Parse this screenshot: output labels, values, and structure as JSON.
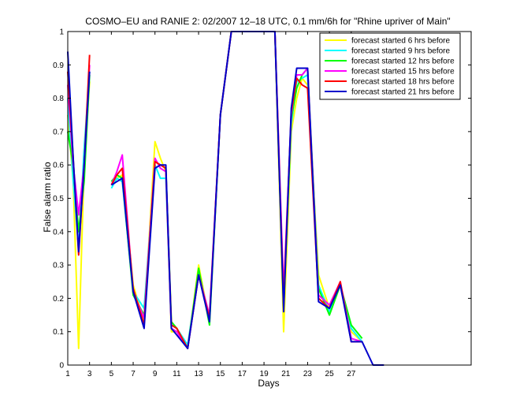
{
  "chart_data": {
    "type": "line",
    "title": "COSMO–EU and RANIE 2: 02/2007 12–18 UTC, 0.1 mm/6h for \"Rhine upriver of Main\"",
    "xlabel": "Days",
    "ylabel": "False alarm ratio",
    "xlim": [
      1,
      38
    ],
    "ylim": [
      0,
      1
    ],
    "x_ticks": [
      1,
      3,
      5,
      7,
      9,
      11,
      13,
      15,
      17,
      19,
      21,
      23,
      25,
      27
    ],
    "y_ticks": [
      0,
      0.1,
      0.2,
      0.3,
      0.4,
      0.5,
      0.6,
      0.7,
      0.8,
      0.9,
      1
    ],
    "y_tick_labels": [
      "0",
      "0.1",
      "0.2",
      "0.3",
      "0.4",
      "0.5",
      "0.6",
      "0.7",
      "0.8",
      "0.9",
      "1"
    ],
    "grid": false,
    "legend_position": "top-right",
    "series": [
      {
        "name": "forecast started 6 hrs before",
        "color": "#ffff00",
        "points": [
          [
            1,
            0.75
          ],
          [
            1.5,
            0.55
          ],
          [
            2,
            0.05
          ],
          [
            2.5,
            0.6
          ],
          [
            3,
            0.85
          ],
          null,
          [
            5,
            0.55
          ],
          [
            5.5,
            0.56
          ],
          [
            6,
            0.57
          ],
          [
            7,
            0.24
          ],
          [
            8,
            0.13
          ],
          [
            9,
            0.67
          ],
          [
            9.5,
            0.62
          ],
          [
            10,
            0.58
          ],
          [
            10.5,
            0.1
          ],
          [
            11,
            0.1
          ],
          [
            12,
            0.05
          ],
          [
            13,
            0.3
          ],
          [
            14,
            0.13
          ],
          [
            15,
            0.75
          ],
          [
            16,
            1
          ],
          [
            17,
            1
          ],
          [
            19,
            1
          ],
          [
            20,
            1
          ],
          [
            20.8,
            0.1
          ],
          [
            21.5,
            0.7
          ],
          [
            22,
            0.8
          ],
          [
            22.5,
            0.86
          ],
          [
            23,
            0.84
          ],
          [
            24,
            0.27
          ],
          [
            25,
            0.17
          ],
          [
            26,
            0.24
          ],
          [
            27,
            0.1
          ],
          [
            28,
            0.07
          ]
        ]
      },
      {
        "name": "forecast started 9 hrs before",
        "color": "#00ffff",
        "points": [
          [
            1,
            0.8
          ],
          [
            1.5,
            0.55
          ],
          [
            2,
            0.35
          ],
          [
            2.5,
            0.65
          ],
          [
            3,
            0.88
          ],
          null,
          [
            5,
            0.53
          ],
          [
            5.5,
            0.56
          ],
          [
            6,
            0.55
          ],
          [
            7,
            0.22
          ],
          [
            8,
            0.17
          ],
          [
            9,
            0.6
          ],
          [
            9.5,
            0.56
          ],
          [
            10,
            0.56
          ],
          [
            10.5,
            0.12
          ],
          [
            11,
            0.11
          ],
          [
            12,
            0.06
          ],
          [
            13,
            0.28
          ],
          [
            14,
            0.14
          ],
          [
            15,
            0.75
          ],
          [
            16,
            1
          ],
          [
            17,
            1
          ],
          [
            19,
            1
          ],
          [
            20,
            1
          ],
          [
            20.8,
            0.2
          ],
          [
            21.5,
            0.72
          ],
          [
            22,
            0.85
          ],
          [
            22.5,
            0.86
          ],
          [
            23,
            0.87
          ],
          [
            24,
            0.24
          ],
          [
            25,
            0.16
          ],
          [
            26,
            0.24
          ],
          [
            27,
            0.11
          ],
          [
            28,
            0.07
          ]
        ]
      },
      {
        "name": "forecast started 12 hrs before",
        "color": "#00ff00",
        "points": [
          [
            1,
            0.7
          ],
          [
            1.5,
            0.6
          ],
          [
            2,
            0.4
          ],
          [
            2.5,
            0.55
          ],
          [
            3,
            0.87
          ],
          null,
          [
            5,
            0.55
          ],
          [
            5.5,
            0.57
          ],
          [
            6,
            0.56
          ],
          [
            7,
            0.21
          ],
          [
            8,
            0.15
          ],
          [
            9,
            0.61
          ],
          [
            9.5,
            0.6
          ],
          [
            10,
            0.59
          ],
          [
            10.5,
            0.13
          ],
          [
            11,
            0.11
          ],
          [
            12,
            0.05
          ],
          [
            13,
            0.29
          ],
          [
            14,
            0.12
          ],
          [
            15,
            0.75
          ],
          [
            16,
            1
          ],
          [
            17,
            1
          ],
          [
            19,
            1
          ],
          [
            20,
            1
          ],
          [
            20.8,
            0.17
          ],
          [
            21.5,
            0.74
          ],
          [
            22,
            0.83
          ],
          [
            22.5,
            0.87
          ],
          [
            23,
            0.89
          ],
          [
            24,
            0.23
          ],
          [
            25,
            0.15
          ],
          [
            26,
            0.24
          ],
          [
            27,
            0.12
          ],
          [
            28,
            0.08
          ]
        ]
      },
      {
        "name": "forecast started 15 hrs before",
        "color": "#ff00ff",
        "points": [
          [
            1,
            0.84
          ],
          [
            1.5,
            0.6
          ],
          [
            2,
            0.45
          ],
          [
            2.5,
            0.6
          ],
          [
            3,
            0.9
          ],
          null,
          [
            5,
            0.54
          ],
          [
            5.5,
            0.58
          ],
          [
            6,
            0.63
          ],
          [
            7,
            0.22
          ],
          [
            8,
            0.14
          ],
          [
            9,
            0.62
          ],
          [
            9.5,
            0.59
          ],
          [
            10,
            0.58
          ],
          [
            10.5,
            0.11
          ],
          [
            11,
            0.1
          ],
          [
            12,
            0.05
          ],
          [
            13,
            0.27
          ],
          [
            14,
            0.15
          ],
          [
            15,
            0.75
          ],
          [
            16,
            1
          ],
          [
            17,
            1
          ],
          [
            19,
            1
          ],
          [
            20,
            1
          ],
          [
            20.8,
            0.22
          ],
          [
            21.5,
            0.75
          ],
          [
            22,
            0.87
          ],
          [
            22.5,
            0.87
          ],
          [
            23,
            0.89
          ],
          [
            24,
            0.21
          ],
          [
            25,
            0.18
          ],
          [
            26,
            0.25
          ],
          [
            27,
            0.08
          ],
          [
            28,
            0.07
          ]
        ]
      },
      {
        "name": "forecast started 18 hrs before",
        "color": "#ff0000",
        "points": [
          [
            1,
            0.88
          ],
          [
            1.5,
            0.62
          ],
          [
            2,
            0.33
          ],
          [
            2.5,
            0.6
          ],
          [
            3,
            0.93
          ],
          null,
          [
            5,
            0.54
          ],
          [
            5.5,
            0.57
          ],
          [
            6,
            0.59
          ],
          [
            7,
            0.23
          ],
          [
            8,
            0.12
          ],
          [
            9,
            0.61
          ],
          [
            9.5,
            0.6
          ],
          [
            10,
            0.59
          ],
          [
            10.5,
            0.12
          ],
          [
            11,
            0.11
          ],
          [
            12,
            0.05
          ],
          [
            13,
            0.27
          ],
          [
            14,
            0.14
          ],
          [
            15,
            0.75
          ],
          [
            16,
            1
          ],
          [
            17,
            1
          ],
          [
            19,
            1
          ],
          [
            20,
            1
          ],
          [
            20.8,
            0.18
          ],
          [
            21.5,
            0.76
          ],
          [
            22,
            0.86
          ],
          [
            22.5,
            0.84
          ],
          [
            23,
            0.83
          ],
          [
            24,
            0.2
          ],
          [
            25,
            0.17
          ],
          [
            26,
            0.25
          ],
          [
            27,
            0.07
          ],
          [
            28,
            0.07
          ]
        ]
      },
      {
        "name": "forecast started 21 hrs before",
        "color": "#0000cc",
        "points": [
          [
            1,
            0.94
          ],
          [
            1.5,
            0.62
          ],
          [
            2,
            0.34
          ],
          [
            2.5,
            0.6
          ],
          [
            3,
            0.88
          ],
          null,
          [
            5,
            0.54
          ],
          [
            5.5,
            0.55
          ],
          [
            6,
            0.56
          ],
          [
            7,
            0.22
          ],
          [
            8,
            0.11
          ],
          [
            9,
            0.59
          ],
          [
            9.5,
            0.6
          ],
          [
            10,
            0.6
          ],
          [
            10.5,
            0.11
          ],
          [
            11,
            0.09
          ],
          [
            12,
            0.05
          ],
          [
            13,
            0.27
          ],
          [
            14,
            0.13
          ],
          [
            15,
            0.75
          ],
          [
            16,
            1
          ],
          [
            17,
            1
          ],
          [
            19,
            1
          ],
          [
            20,
            1
          ],
          [
            20.8,
            0.16
          ],
          [
            21.5,
            0.77
          ],
          [
            22,
            0.89
          ],
          [
            22.5,
            0.89
          ],
          [
            23,
            0.89
          ],
          [
            24,
            0.19
          ],
          [
            25,
            0.17
          ],
          [
            26,
            0.24
          ],
          [
            27,
            0.07
          ],
          [
            28,
            0.07
          ],
          [
            29,
            0
          ],
          [
            30,
            0
          ]
        ]
      }
    ]
  }
}
